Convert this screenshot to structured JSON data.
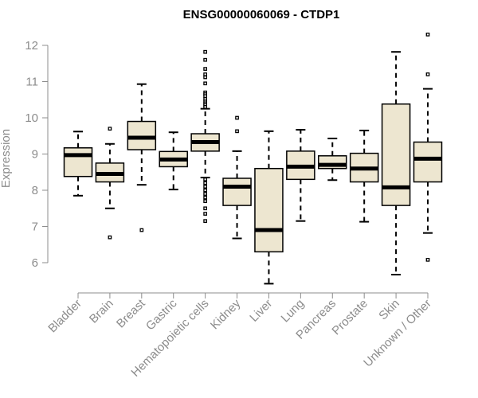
{
  "chart_data": {
    "type": "box",
    "title": "ENSG00000060069 - CTDP1",
    "xlabel": "",
    "ylabel": "Expression",
    "ylim": [
      5.3,
      12.5
    ],
    "yticks": [
      6,
      7,
      8,
      9,
      10,
      11,
      12
    ],
    "grid": false,
    "legend": "none",
    "categories": [
      "Bladder",
      "Brain",
      "Breast",
      "Gastric",
      "Hematopoietic cells",
      "Kidney",
      "Liver",
      "Lung",
      "Pancreas",
      "Prostate",
      "Skin",
      "Unknown / Other"
    ],
    "boxes": [
      {
        "category": "Bladder",
        "whisker_low": 7.85,
        "q1": 8.38,
        "median": 8.97,
        "q3": 9.17,
        "whisker_high": 9.62,
        "outliers": []
      },
      {
        "category": "Brain",
        "whisker_low": 7.5,
        "q1": 8.23,
        "median": 8.45,
        "q3": 8.75,
        "whisker_high": 9.28,
        "outliers": [
          6.7,
          9.7
        ]
      },
      {
        "category": "Breast",
        "whisker_low": 8.15,
        "q1": 9.12,
        "median": 9.45,
        "q3": 9.9,
        "whisker_high": 10.93,
        "outliers": [
          6.9
        ]
      },
      {
        "category": "Gastric",
        "whisker_low": 8.02,
        "q1": 8.65,
        "median": 8.85,
        "q3": 9.07,
        "whisker_high": 9.6,
        "outliers": []
      },
      {
        "category": "Hematopoietic cells",
        "whisker_low": 8.35,
        "q1": 9.08,
        "median": 9.33,
        "q3": 9.56,
        "whisker_high": 10.25,
        "outliers": [
          11.82,
          11.6,
          11.35,
          11.2,
          11.12,
          10.95,
          10.7,
          10.65,
          10.6,
          10.52,
          10.45,
          10.4,
          10.35,
          10.3,
          8.3,
          8.2,
          8.1,
          8.0,
          7.9,
          7.8,
          7.7,
          7.5,
          7.35,
          7.15
        ]
      },
      {
        "category": "Kidney",
        "whisker_low": 6.67,
        "q1": 7.58,
        "median": 8.1,
        "q3": 8.33,
        "whisker_high": 9.08,
        "outliers": [
          9.63,
          10.0
        ]
      },
      {
        "category": "Liver",
        "whisker_low": 5.42,
        "q1": 6.3,
        "median": 6.9,
        "q3": 8.6,
        "whisker_high": 9.63,
        "outliers": []
      },
      {
        "category": "Lung",
        "whisker_low": 7.15,
        "q1": 8.3,
        "median": 8.65,
        "q3": 9.08,
        "whisker_high": 9.67,
        "outliers": []
      },
      {
        "category": "Pancreas",
        "whisker_low": 8.28,
        "q1": 8.6,
        "median": 8.7,
        "q3": 8.95,
        "whisker_high": 9.43,
        "outliers": []
      },
      {
        "category": "Prostate",
        "whisker_low": 7.13,
        "q1": 8.23,
        "median": 8.6,
        "q3": 9.02,
        "whisker_high": 9.65,
        "outliers": []
      },
      {
        "category": "Skin",
        "whisker_low": 5.67,
        "q1": 7.58,
        "median": 8.08,
        "q3": 10.38,
        "whisker_high": 11.82,
        "outliers": []
      },
      {
        "category": "Unknown / Other",
        "whisker_low": 6.82,
        "q1": 8.23,
        "median": 8.87,
        "q3": 9.33,
        "whisker_high": 10.8,
        "outliers": [
          6.08,
          11.2,
          12.3
        ]
      }
    ],
    "colors": {
      "box_fill": "#ede6d0",
      "box_stroke": "#000000",
      "median": "#000000",
      "axis": "#8c8c8c",
      "outlier": "#000000"
    }
  }
}
